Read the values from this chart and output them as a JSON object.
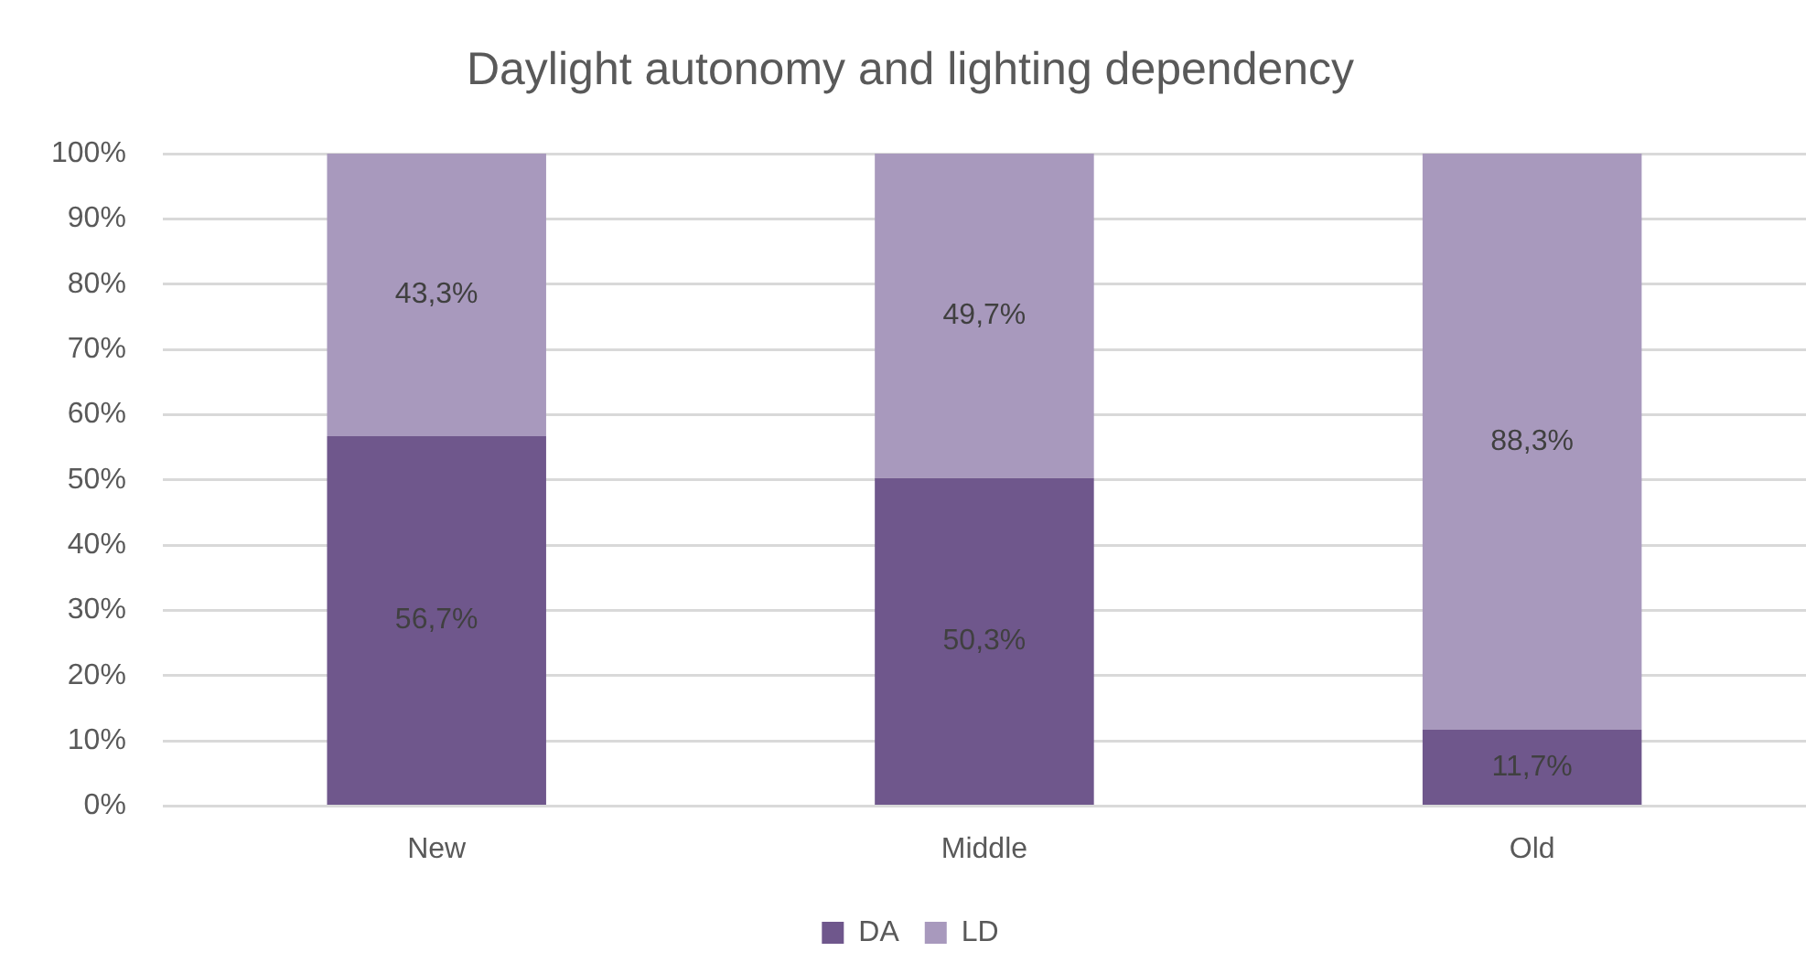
{
  "chart_data": {
    "type": "bar",
    "title": "Daylight autonomy and lighting dependency",
    "categories": [
      "New",
      "Middle",
      "Old"
    ],
    "series": [
      {
        "name": "DA",
        "color": "#6f578c",
        "values": [
          56.7,
          50.3,
          11.7
        ],
        "value_labels": [
          "56,7%",
          "50,3%",
          "11,7%"
        ]
      },
      {
        "name": "LD",
        "color": "#a899bd",
        "values": [
          43.3,
          49.7,
          88.3
        ],
        "value_labels": [
          "43,3%",
          "49,7%",
          "88,3%"
        ]
      }
    ],
    "stacked": true,
    "ylim": [
      0,
      100
    ],
    "yticks": [
      {
        "value": 0,
        "label": "0%"
      },
      {
        "value": 10,
        "label": "10%"
      },
      {
        "value": 20,
        "label": "20%"
      },
      {
        "value": 30,
        "label": "30%"
      },
      {
        "value": 40,
        "label": "40%"
      },
      {
        "value": 50,
        "label": "50%"
      },
      {
        "value": 60,
        "label": "60%"
      },
      {
        "value": 70,
        "label": "70%"
      },
      {
        "value": 80,
        "label": "80%"
      },
      {
        "value": 90,
        "label": "90%"
      },
      {
        "value": 100,
        "label": "100%"
      }
    ],
    "grid": "y",
    "legend": "bottom"
  }
}
